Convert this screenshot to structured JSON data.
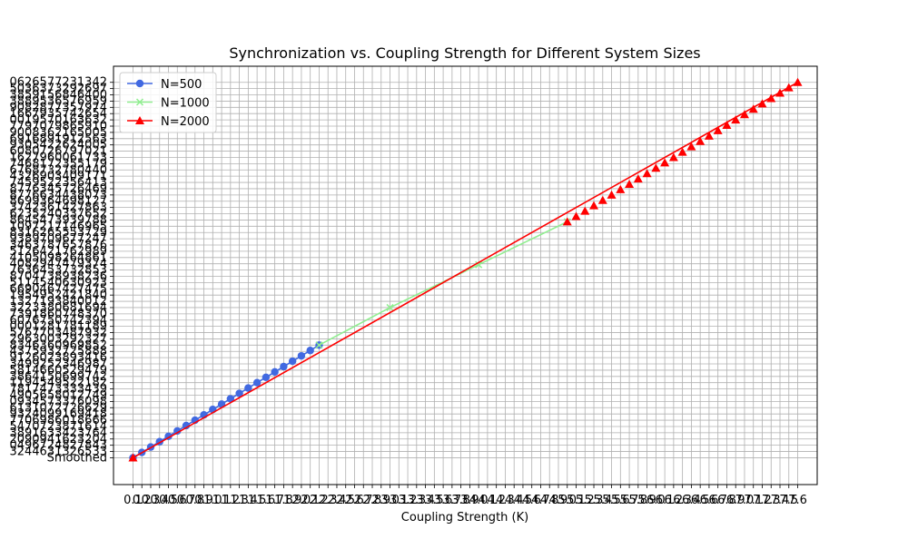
{
  "chart_data": {
    "type": "line",
    "title": "Synchronization vs. Coupling Strength for Different System Sizes",
    "xlabel": "Coupling Strength (K)",
    "ylabel": "",
    "grid": true,
    "legend_position": "top-left",
    "x_tick_first": "0.1",
    "x_tick_last_fragment": "7",
    "y_first_category": "Smoothed",
    "y_categories_note": "Categorical y-axis with long numeric-string labels overlapping each other",
    "y_tick_labels": [
      "Smoothed",
      "3244631326533",
      "0496724827843",
      "2090941623204",
      "3891633423764",
      "5470723871614",
      "7706986018666",
      "9324099169418",
      "6131072726629",
      "0934573376098",
      "4905658012749",
      "7817473333439",
      "1194549522182",
      "3864150699742",
      "5814660529479",
      "3499252346987",
      "9126023893416",
      "4375932725888",
      "8346360969852",
      "2963003292327",
      "5767703487932",
      "0001281781189",
      "6076750742394",
      "7391860748370",
      "3223380681694",
      "1327193840012",
      "1954952421840",
      "6690467427475",
      "5114540630923",
      "8704738938236",
      "7636453732853",
      "4082947479374",
      "4105098264861",
      "5126421762989",
      "3463787657876",
      "9389709677247",
      "8316265553729",
      "1097217146965",
      "8645473939788",
      "6235240337652",
      "3742361427863",
      "8699364698127",
      "8776634438073",
      "8776345726469",
      "7459522356413",
      "4326903409171",
      "6768732780440",
      "7468172355179",
      "1627960061733",
      "6080726797021",
      "9305422624005",
      "6916891912563",
      "9008362165005",
      "7797079865910",
      "0019570163632",
      "1667935742654",
      "9082877357974",
      "3889536576959",
      "3859156846400",
      "5036373292697",
      "0626577231342"
    ],
    "series": [
      {
        "name": "N=500",
        "color": "#4169E1",
        "marker": "circle",
        "x": [
          0.1,
          0.2,
          0.3,
          0.4,
          0.5,
          0.6,
          0.7,
          0.8,
          0.9,
          1.0,
          1.1,
          1.2,
          1.3,
          1.4,
          1.5,
          1.6,
          1.7,
          1.8,
          1.9,
          2.0,
          2.1,
          2.2
        ],
        "y": [
          0,
          1,
          2,
          3,
          4,
          5,
          6,
          7,
          8,
          9,
          10,
          11,
          12,
          13,
          14,
          15,
          16,
          17,
          18,
          19,
          20,
          21
        ]
      },
      {
        "name": "N=1000",
        "color": "#90EE90",
        "marker": "x",
        "x": [
          2.2,
          3.0,
          4.0,
          5.0
        ],
        "y": [
          21,
          28,
          36,
          44
        ]
      },
      {
        "name": "N=2000",
        "color": "#FF0000",
        "marker": "triangle",
        "x": [
          0.1,
          5.0,
          5.1,
          5.2,
          5.3,
          5.4,
          5.5,
          5.6,
          5.7,
          5.8,
          5.9,
          6.0,
          6.1,
          6.2,
          6.3,
          6.4,
          6.5,
          6.6,
          6.7,
          6.8,
          6.9,
          7.0,
          7.1,
          7.2,
          7.3,
          7.4,
          7.5,
          7.6
        ],
        "y": [
          0,
          44,
          45,
          46,
          47,
          48,
          49,
          50,
          51,
          52,
          53,
          54,
          55,
          56,
          57,
          58,
          59,
          60,
          61,
          62,
          63,
          64,
          65,
          66,
          67,
          68,
          69,
          70
        ]
      }
    ],
    "xlim": [
      -0.12,
      7.82
    ],
    "ylim": [
      -5,
      73
    ],
    "x_tick_values": [
      0.1,
      0.2,
      0.3,
      0.4,
      0.5,
      0.6,
      0.7,
      0.8,
      0.9,
      1.0,
      1.1,
      1.2,
      1.3,
      1.4,
      1.5,
      1.6,
      1.7,
      1.8,
      1.9,
      2.0,
      2.1,
      2.2,
      2.3,
      2.4,
      2.5,
      2.6,
      2.7,
      2.8,
      2.9,
      3.0,
      3.1,
      3.2,
      3.3,
      3.4,
      3.5,
      3.6,
      3.7,
      3.8,
      3.9,
      4.0,
      4.1,
      4.2,
      4.3,
      4.4,
      4.5,
      4.6,
      4.7,
      4.8,
      4.9,
      5.0,
      5.1,
      5.2,
      5.3,
      5.4,
      5.5,
      5.6,
      5.7,
      5.8,
      5.9,
      6.0,
      6.1,
      6.2,
      6.3,
      6.4,
      6.5,
      6.6,
      6.7,
      6.8,
      6.9,
      7.0,
      7.1,
      7.2,
      7.3,
      7.4,
      7.5,
      7.6
    ]
  }
}
